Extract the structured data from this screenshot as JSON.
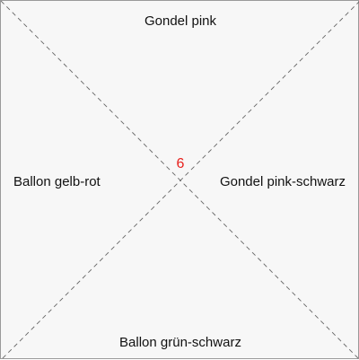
{
  "quadrants": {
    "top": "Gondel pink",
    "right": "Gondel pink-schwarz",
    "bottom": "Ballon grün-schwarz",
    "left": "Ballon gelb-rot"
  },
  "center": {
    "number": "6",
    "color": "#e8201c"
  },
  "colors": {
    "background": "#f7f7f7",
    "border": "#9a9a9a",
    "diagonal_lines": "#666666",
    "text": "#111111"
  }
}
